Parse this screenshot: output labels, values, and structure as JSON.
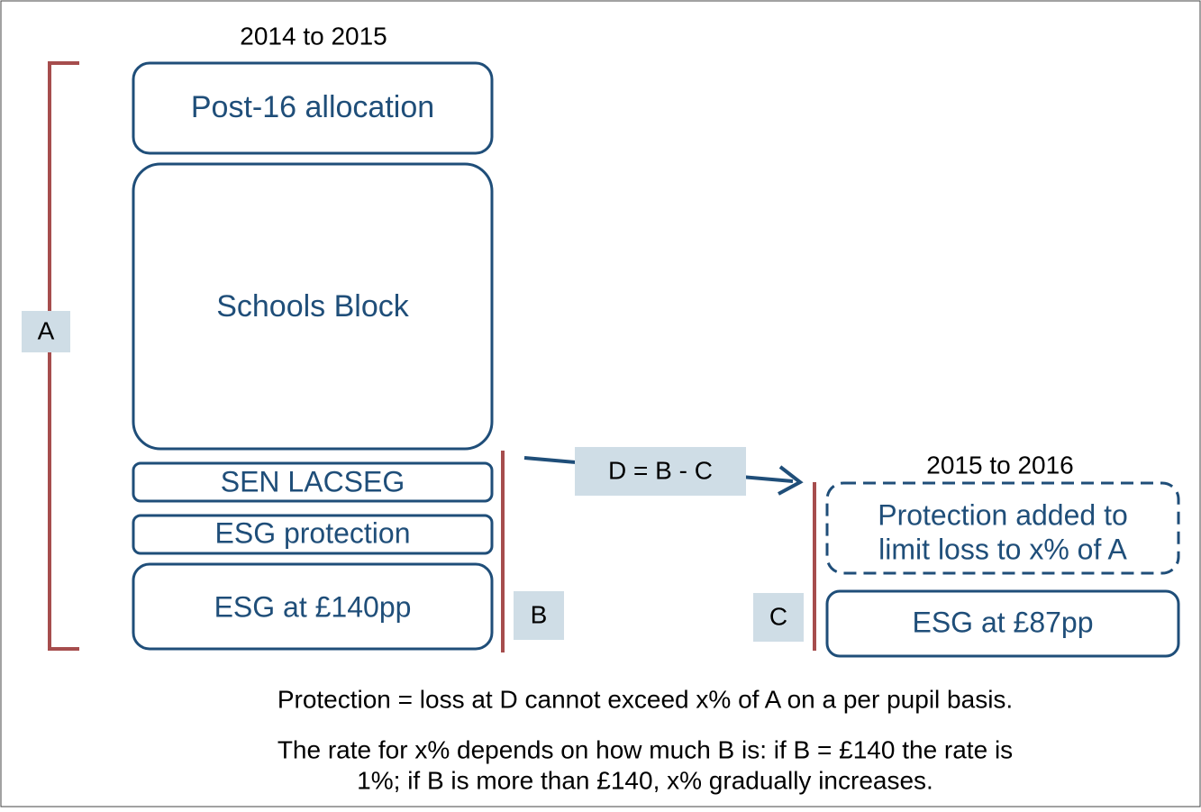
{
  "left_title": "2014 to 2015",
  "right_title": "2015 to 2016",
  "left_boxes": [
    "Post-16 allocation",
    "Schools Block",
    "SEN LACSEG",
    "ESG protection",
    "ESG at £140pp"
  ],
  "right_boxes": [
    "Protection added to",
    "limit loss to x% of A",
    "ESG at £87pp"
  ],
  "labels": {
    "a": "A",
    "b": "B",
    "c": "C",
    "d": "D = B - C"
  },
  "notes": [
    "Protection = loss at D cannot exceed x% of A on a per pupil basis.",
    "The rate for x% depends on how much B is: if B = £140 the rate is",
    "1%; if B is more than £140, x% gradually increases."
  ]
}
